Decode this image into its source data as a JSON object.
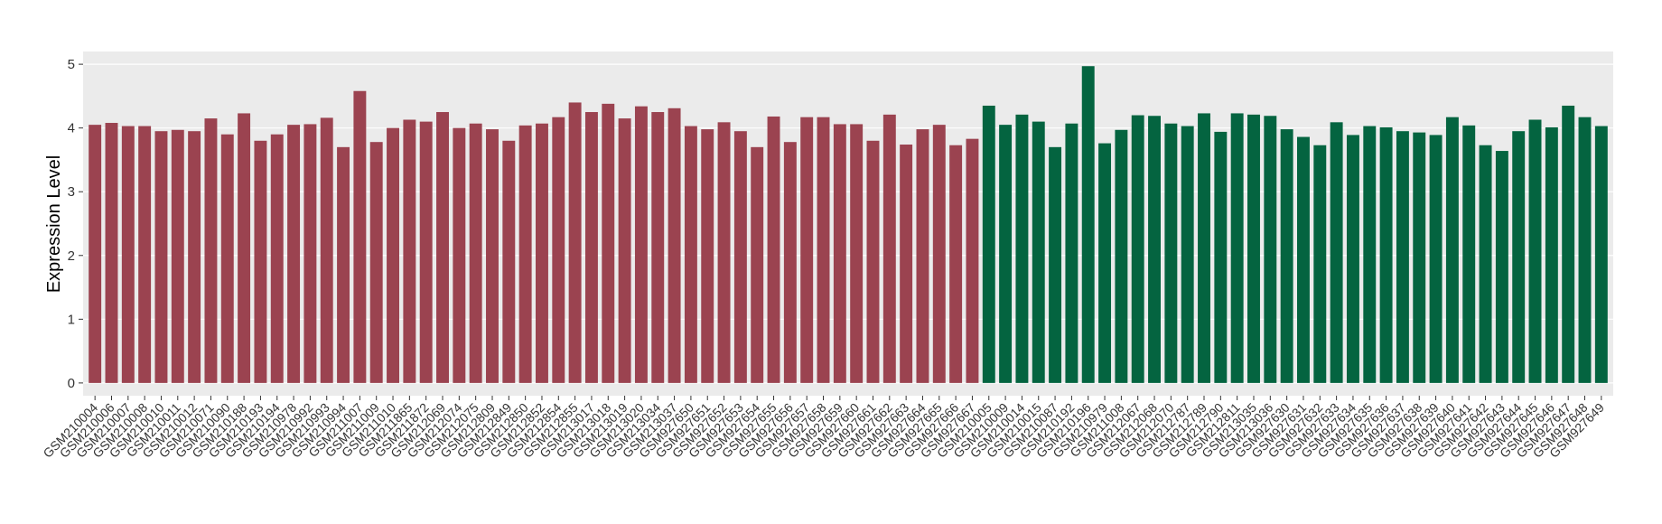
{
  "chart_data": {
    "type": "bar",
    "y_label": "Expression Level",
    "categories": [
      "GSM210004",
      "GSM210006",
      "GSM210007",
      "GSM210008",
      "GSM210010",
      "GSM210011",
      "GSM210012",
      "GSM210071",
      "GSM210090",
      "GSM210188",
      "GSM210193",
      "GSM210194",
      "GSM210978",
      "GSM210992",
      "GSM210993",
      "GSM210994",
      "GSM211007",
      "GSM211009",
      "GSM211010",
      "GSM211865",
      "GSM211872",
      "GSM212069",
      "GSM212074",
      "GSM212075",
      "GSM212809",
      "GSM212849",
      "GSM212850",
      "GSM212852",
      "GSM212854",
      "GSM212855",
      "GSM213017",
      "GSM213018",
      "GSM213019",
      "GSM213020",
      "GSM213034",
      "GSM213037",
      "GSM927650",
      "GSM927651",
      "GSM927652",
      "GSM927653",
      "GSM927654",
      "GSM927655",
      "GSM927656",
      "GSM927657",
      "GSM927658",
      "GSM927659",
      "GSM927660",
      "GSM927661",
      "GSM927662",
      "GSM927663",
      "GSM927664",
      "GSM927665",
      "GSM927666",
      "GSM927667",
      "GSM210005",
      "GSM210009",
      "GSM210014",
      "GSM210015",
      "GSM210087",
      "GSM210192",
      "GSM210196",
      "GSM210979",
      "GSM211008",
      "GSM212067",
      "GSM212068",
      "GSM212070",
      "GSM212787",
      "GSM212789",
      "GSM212790",
      "GSM212811",
      "GSM213035",
      "GSM213036",
      "GSM927630",
      "GSM927631",
      "GSM927632",
      "GSM927633",
      "GSM927634",
      "GSM927635",
      "GSM927636",
      "GSM927637",
      "GSM927638",
      "GSM927639",
      "GSM927640",
      "GSM927641",
      "GSM927642",
      "GSM927643",
      "GSM927644",
      "GSM927645",
      "GSM927646",
      "GSM927647",
      "GSM927648",
      "GSM927649"
    ],
    "values": [
      4.05,
      4.08,
      4.03,
      4.03,
      3.95,
      3.97,
      3.95,
      4.15,
      3.9,
      4.23,
      3.8,
      3.9,
      4.05,
      4.06,
      4.16,
      3.7,
      4.58,
      3.78,
      4.0,
      4.13,
      4.1,
      4.25,
      4.0,
      4.07,
      3.98,
      3.8,
      4.04,
      4.07,
      4.17,
      4.4,
      4.25,
      4.38,
      4.15,
      4.34,
      4.25,
      4.31,
      4.03,
      3.98,
      4.09,
      3.95,
      3.7,
      4.18,
      3.78,
      4.17,
      4.17,
      4.06,
      4.06,
      3.8,
      4.21,
      3.74,
      3.98,
      4.05,
      3.73,
      3.83,
      4.35,
      4.05,
      4.21,
      4.1,
      3.7,
      4.07,
      4.97,
      3.76,
      3.97,
      4.2,
      4.19,
      4.07,
      4.03,
      4.23,
      3.94,
      4.23,
      4.21,
      4.19,
      3.98,
      3.86,
      3.73,
      4.09,
      3.89,
      4.03,
      4.01,
      3.95,
      3.93,
      3.89,
      4.17,
      4.04,
      3.73,
      3.64,
      3.95,
      4.13,
      4.01,
      4.35,
      4.17,
      4.03
    ],
    "colors": [
      "#9b4350",
      "#9b4350",
      "#9b4350",
      "#9b4350",
      "#9b4350",
      "#9b4350",
      "#9b4350",
      "#9b4350",
      "#9b4350",
      "#9b4350",
      "#9b4350",
      "#9b4350",
      "#9b4350",
      "#9b4350",
      "#9b4350",
      "#9b4350",
      "#9b4350",
      "#9b4350",
      "#9b4350",
      "#9b4350",
      "#9b4350",
      "#9b4350",
      "#9b4350",
      "#9b4350",
      "#9b4350",
      "#9b4350",
      "#9b4350",
      "#9b4350",
      "#9b4350",
      "#9b4350",
      "#9b4350",
      "#9b4350",
      "#9b4350",
      "#9b4350",
      "#9b4350",
      "#9b4350",
      "#9b4350",
      "#9b4350",
      "#9b4350",
      "#9b4350",
      "#9b4350",
      "#9b4350",
      "#9b4350",
      "#9b4350",
      "#9b4350",
      "#9b4350",
      "#9b4350",
      "#9b4350",
      "#9b4350",
      "#9b4350",
      "#9b4350",
      "#9b4350",
      "#9b4350",
      "#9b4350",
      "#046440",
      "#046440",
      "#046440",
      "#046440",
      "#046440",
      "#046440",
      "#046440",
      "#046440",
      "#046440",
      "#046440",
      "#046440",
      "#046440",
      "#046440",
      "#046440",
      "#046440",
      "#046440",
      "#046440",
      "#046440",
      "#046440",
      "#046440",
      "#046440",
      "#046440",
      "#046440",
      "#046440",
      "#046440",
      "#046440",
      "#046440",
      "#046440",
      "#046440",
      "#046440",
      "#046440",
      "#046440",
      "#046440",
      "#046440",
      "#046440",
      "#046440",
      "#046440",
      "#046440"
    ],
    "ylim": [
      -0.2,
      5.2
    ],
    "yticks": [
      0,
      1,
      2,
      3,
      4,
      5
    ],
    "grid": true
  }
}
